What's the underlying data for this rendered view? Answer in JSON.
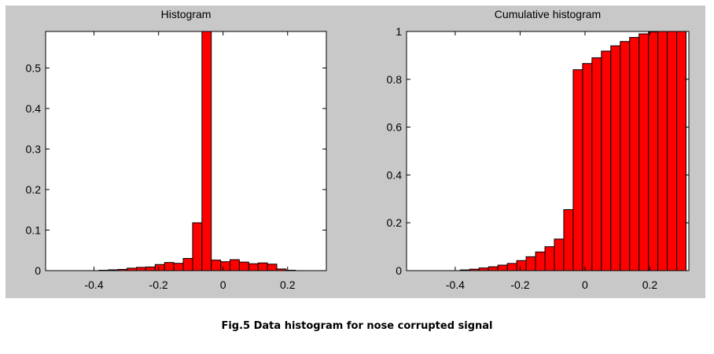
{
  "caption": "Fig.5 Data histogram for nose corrupted signal",
  "colors": {
    "bar": "#ff0000",
    "bar_edge": "#000000",
    "figure_bg": "#c8c8c8",
    "axes_bg": "#ffffff"
  },
  "chart_data": [
    {
      "type": "bar",
      "title": "Histogram",
      "xlabel": "",
      "ylabel": "",
      "xlim": [
        -0.55,
        0.32
      ],
      "ylim": [
        0,
        0.59
      ],
      "xticks": [
        -0.4,
        -0.2,
        0,
        0.2
      ],
      "xtick_labels": [
        "-0.4",
        "-0.2",
        "0",
        "0.2"
      ],
      "yticks": [
        0,
        0.1,
        0.2,
        0.3,
        0.4,
        0.5
      ],
      "ytick_labels": [
        "0",
        "0.1",
        "0.2",
        "0.3",
        "0.4",
        "0.5"
      ],
      "grid": false,
      "bin_width": 0.0289,
      "x": [
        -0.37,
        -0.341,
        -0.312,
        -0.283,
        -0.254,
        -0.225,
        -0.196,
        -0.167,
        -0.138,
        -0.109,
        -0.08,
        -0.051,
        -0.022,
        0.007,
        0.036,
        0.065,
        0.094,
        0.123,
        0.152,
        0.181,
        0.21
      ],
      "values": [
        0.001,
        0.002,
        0.003,
        0.006,
        0.008,
        0.009,
        0.015,
        0.02,
        0.018,
        0.03,
        0.118,
        0.59,
        0.026,
        0.022,
        0.027,
        0.021,
        0.017,
        0.019,
        0.016,
        0.004,
        0.001
      ]
    },
    {
      "type": "bar",
      "title": "Cumulative histogram",
      "xlabel": "",
      "ylabel": "",
      "xlim": [
        -0.55,
        0.32
      ],
      "ylim": [
        0,
        1
      ],
      "xticks": [
        -0.4,
        -0.2,
        0,
        0.2
      ],
      "xtick_labels": [
        "-0.4",
        "-0.2",
        "0",
        "0.2"
      ],
      "yticks": [
        0,
        0.2,
        0.4,
        0.6,
        0.8,
        1
      ],
      "ytick_labels": [
        "0",
        "0.2",
        "0.4",
        "0.6",
        "0.8",
        "1"
      ],
      "grid": false,
      "bin_width": 0.0289,
      "x": [
        -0.37,
        -0.341,
        -0.312,
        -0.283,
        -0.254,
        -0.225,
        -0.196,
        -0.167,
        -0.138,
        -0.109,
        -0.08,
        -0.051,
        -0.022,
        0.007,
        0.036,
        0.065,
        0.094,
        0.123,
        0.152,
        0.181,
        0.21,
        0.239,
        0.268,
        0.297
      ],
      "values": [
        0.003,
        0.006,
        0.011,
        0.016,
        0.023,
        0.03,
        0.042,
        0.058,
        0.078,
        0.1,
        0.132,
        0.255,
        0.84,
        0.866,
        0.89,
        0.918,
        0.94,
        0.958,
        0.975,
        0.99,
        0.998,
        1.0,
        1.0,
        1.0
      ]
    }
  ]
}
